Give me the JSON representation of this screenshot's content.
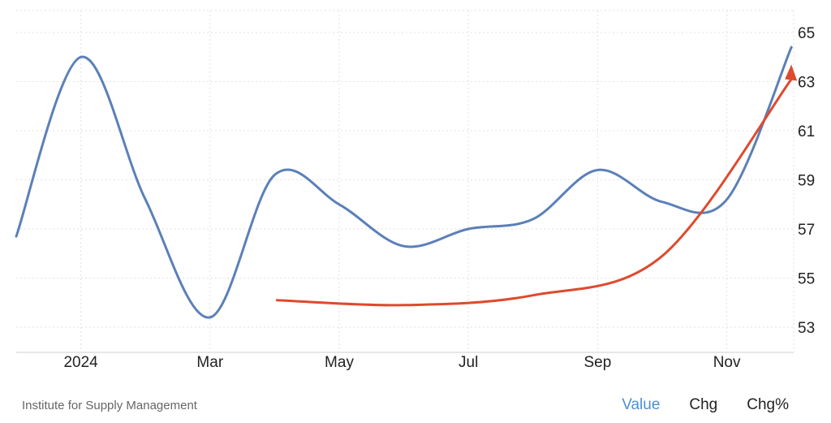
{
  "chart_data": {
    "type": "line",
    "x": [
      "2023-12",
      "2024-01",
      "2024-02",
      "2024-03",
      "2024-04",
      "2024-05",
      "2024-06",
      "2024-07",
      "2024-08",
      "2024-09",
      "2024-10",
      "2024-11",
      "2024-12"
    ],
    "x_tick_labels": [
      {
        "x": "2024-01",
        "label": "2024"
      },
      {
        "x": "2024-03",
        "label": "Mar"
      },
      {
        "x": "2024-05",
        "label": "May"
      },
      {
        "x": "2024-07",
        "label": "Jul"
      },
      {
        "x": "2024-09",
        "label": "Sep"
      },
      {
        "x": "2024-11",
        "label": "Nov"
      }
    ],
    "series": [
      {
        "values": [
          56.7,
          64.0,
          58.2,
          53.4,
          59.2,
          58.0,
          56.3,
          57.0,
          57.4,
          59.4,
          58.1,
          58.2,
          64.4
        ],
        "color": "#5b80b8"
      }
    ],
    "annotation": {
      "type": "trend-arrow",
      "color": "#de4a2e",
      "points": [
        [
          "2024-04",
          54.1
        ],
        [
          "2024-06",
          53.9
        ],
        [
          "2024-08",
          54.3
        ],
        [
          "2024-10",
          55.9
        ],
        [
          "2024-12",
          63.1
        ]
      ]
    },
    "ylim": [
      52,
      66
    ],
    "y_ticks": [
      53,
      55,
      57,
      59,
      61,
      63,
      65
    ],
    "y_axis_position": "right",
    "grid": true,
    "title": "",
    "xlabel": "",
    "ylabel": ""
  },
  "footer": {
    "source": "Institute for Supply Management",
    "tabs": [
      "Value",
      "Chg",
      "Chg%"
    ],
    "active_tab": "Value"
  }
}
